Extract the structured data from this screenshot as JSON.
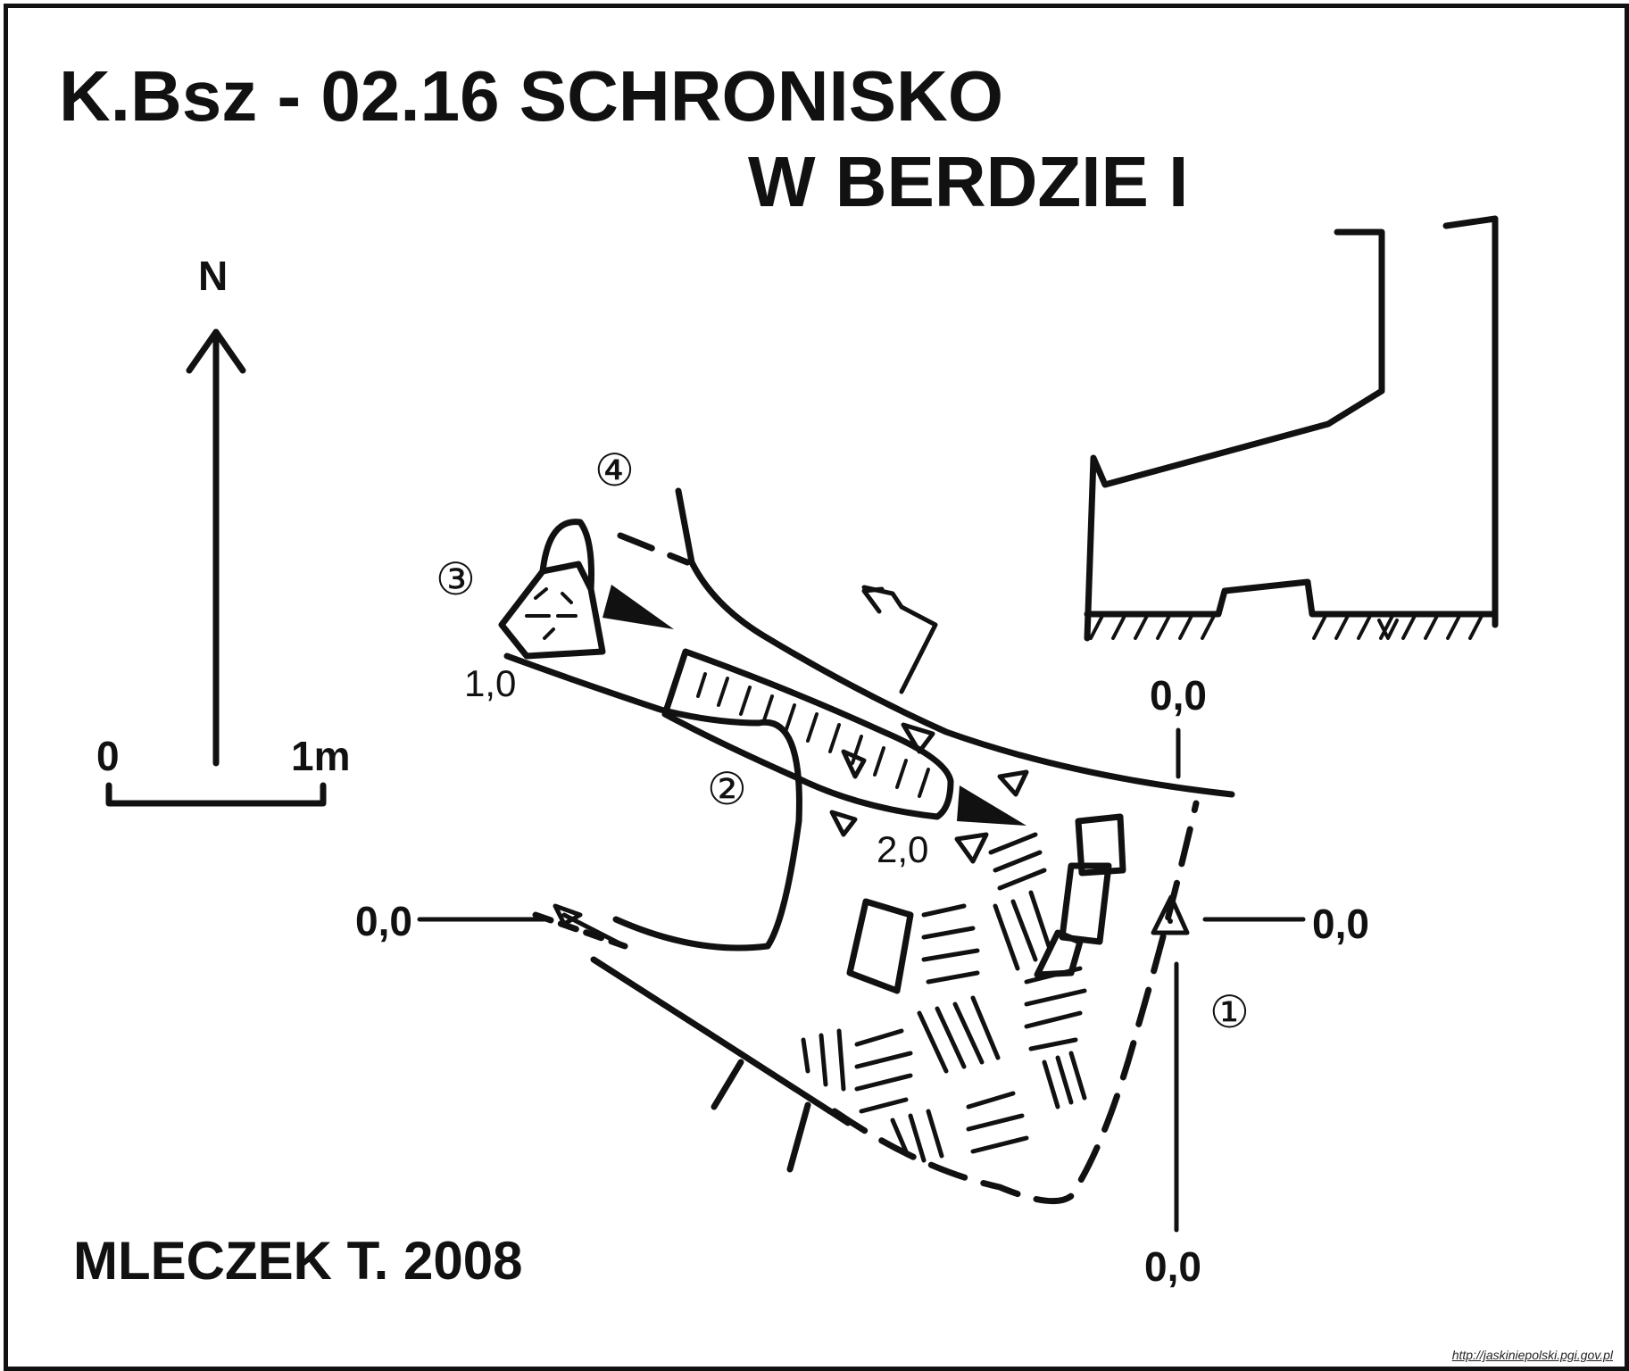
{
  "title": {
    "line1": "K.Bsz - 02.16  SCHRONISKO",
    "line2": "W BERDZIE I"
  },
  "north_label": "N",
  "scale": {
    "start": "0",
    "end": "1m"
  },
  "author": "MLECZEK T. 2008",
  "source_url": "http://jaskiniepolski.pgi.gov.pl",
  "section_marks": {
    "top": "0,0",
    "bottom": "0,0",
    "left": "0,0",
    "right": "0,0"
  },
  "depth_labels": {
    "d1": "1,0",
    "d2": "2,0"
  },
  "section_numbers": {
    "s1": "①",
    "s2": "②",
    "s3": "③",
    "s4": "④"
  },
  "colors": {
    "ink": "#111111",
    "paper": "#ffffff"
  }
}
